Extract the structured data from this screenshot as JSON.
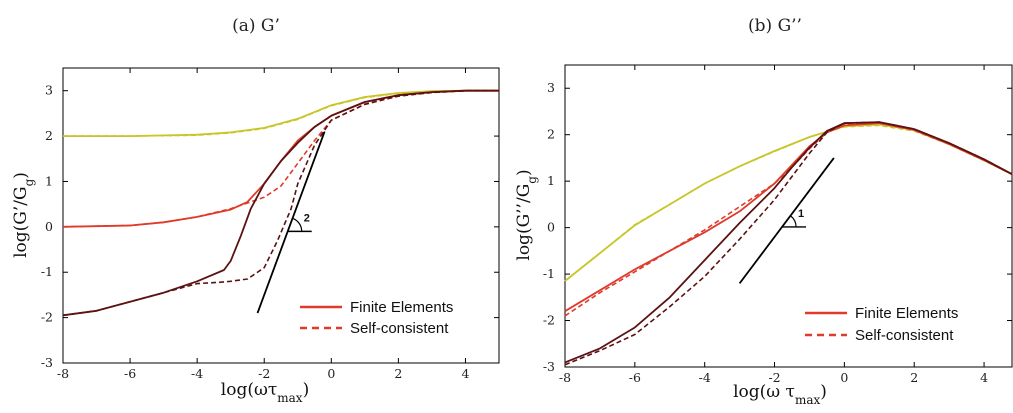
{
  "chart_data": [
    {
      "type": "line",
      "panel_title": "(a) G’",
      "ylabel": "log(G’/Gg)",
      "xlabel": "log(ωτmax)",
      "xlim": [
        -8,
        5
      ],
      "ylim": [
        -3,
        3.5
      ],
      "xticks": [
        -8,
        -6,
        -4,
        -2,
        0,
        2,
        4
      ],
      "yticks": [
        -3,
        -2,
        -1,
        0,
        1,
        2,
        3
      ],
      "legend": {
        "position": "bottom-right",
        "entries": [
          {
            "label": "Finite Elements",
            "style": "solid"
          },
          {
            "label": "Self-consistent",
            "style": "dashed"
          }
        ]
      },
      "slope_label": "2",
      "slope_line": {
        "x": [
          -2.2,
          -0.2
        ],
        "y": [
          -1.9,
          2.1
        ]
      },
      "colors": {
        "axis": "#000000",
        "yellow": "#c8c628",
        "red": "#e03a2a",
        "dark": "#5a1212",
        "slope": "#000000"
      },
      "series": [
        {
          "color": "yellow",
          "dash": false,
          "x": [
            -8,
            -6,
            -4,
            -3,
            -2,
            -1,
            0,
            1,
            2,
            3,
            4,
            5
          ],
          "y": [
            2.0,
            2.0,
            2.03,
            2.08,
            2.18,
            2.38,
            2.68,
            2.86,
            2.95,
            2.99,
            3.0,
            3.0
          ]
        },
        {
          "color": "yellow",
          "dash": true,
          "x": [
            -8,
            -6,
            -4,
            -3,
            -2,
            -1,
            0,
            1,
            2,
            3,
            4,
            5
          ],
          "y": [
            2.0,
            2.0,
            2.02,
            2.07,
            2.17,
            2.37,
            2.67,
            2.85,
            2.94,
            2.99,
            3.0,
            3.0
          ]
        },
        {
          "color": "red",
          "dash": false,
          "x": [
            -8,
            -6,
            -5,
            -4,
            -3,
            -2.5,
            -2,
            -1.5,
            -1,
            -0.5,
            0,
            1,
            2,
            3,
            4,
            5
          ],
          "y": [
            0.0,
            0.03,
            0.1,
            0.22,
            0.38,
            0.55,
            0.95,
            1.45,
            1.9,
            2.2,
            2.45,
            2.75,
            2.9,
            2.97,
            3.0,
            3.0
          ]
        },
        {
          "color": "red",
          "dash": true,
          "x": [
            -8,
            -6,
            -5,
            -4,
            -3,
            -2,
            -1.5,
            -1,
            -0.5,
            0,
            1,
            2,
            3,
            4,
            5
          ],
          "y": [
            0.0,
            0.03,
            0.1,
            0.22,
            0.4,
            0.65,
            0.9,
            1.4,
            1.9,
            2.35,
            2.7,
            2.88,
            2.96,
            3.0,
            3.0
          ]
        },
        {
          "color": "dark",
          "dash": false,
          "x": [
            -8,
            -7,
            -6,
            -5,
            -4,
            -3.2,
            -3,
            -2.7,
            -2.4,
            -2,
            -1.5,
            -1,
            -0.5,
            0,
            1,
            2,
            3,
            4,
            5
          ],
          "y": [
            -1.95,
            -1.85,
            -1.65,
            -1.45,
            -1.2,
            -0.95,
            -0.75,
            -0.2,
            0.4,
            0.95,
            1.45,
            1.85,
            2.2,
            2.45,
            2.75,
            2.9,
            2.97,
            3.0,
            3.0
          ]
        },
        {
          "color": "dark",
          "dash": true,
          "x": [
            -8,
            -7,
            -6,
            -5,
            -4,
            -3.3,
            -3,
            -2.5,
            -2,
            -1.6,
            -1.2,
            -1,
            -0.5,
            0,
            1,
            2,
            3,
            4,
            5
          ],
          "y": [
            -1.95,
            -1.85,
            -1.65,
            -1.45,
            -1.25,
            -1.22,
            -1.2,
            -1.15,
            -0.9,
            -0.3,
            0.4,
            0.95,
            1.8,
            2.35,
            2.7,
            2.88,
            2.96,
            3.0,
            3.0
          ]
        }
      ]
    },
    {
      "type": "line",
      "panel_title": "(b) G’’",
      "ylabel": "log(G’’/Gg)",
      "xlabel": "log(ω τmax)",
      "xlim": [
        -8,
        4.8
      ],
      "ylim": [
        -3,
        3.5
      ],
      "xticks": [
        -8,
        -6,
        -4,
        -2,
        0,
        2,
        4
      ],
      "yticks": [
        -3,
        -2,
        -1,
        0,
        1,
        2,
        3
      ],
      "legend": {
        "position": "bottom-right",
        "entries": [
          {
            "label": "Finite Elements",
            "style": "solid"
          },
          {
            "label": "Self-consistent",
            "style": "dashed"
          }
        ]
      },
      "slope_label": "1",
      "slope_line": {
        "x": [
          -3,
          -0.3
        ],
        "y": [
          -1.2,
          1.5
        ]
      },
      "colors": {
        "axis": "#000000",
        "yellow": "#c8c628",
        "red": "#e03a2a",
        "dark": "#5a1212",
        "slope": "#000000"
      },
      "series": [
        {
          "color": "yellow",
          "dash": false,
          "x": [
            -8,
            -7,
            -6,
            -5,
            -4,
            -3,
            -2,
            -1,
            0,
            1,
            2,
            3,
            4,
            4.8
          ],
          "y": [
            -1.15,
            -0.55,
            0.05,
            0.5,
            0.95,
            1.32,
            1.65,
            1.95,
            2.18,
            2.22,
            2.1,
            1.8,
            1.45,
            1.15
          ]
        },
        {
          "color": "yellow",
          "dash": true,
          "x": [
            -8,
            -7,
            -6,
            -5,
            -4,
            -3,
            -2,
            -1,
            0,
            1,
            2,
            3,
            4,
            4.8
          ],
          "y": [
            -1.15,
            -0.55,
            0.06,
            0.5,
            0.95,
            1.32,
            1.64,
            1.95,
            2.17,
            2.2,
            2.08,
            1.79,
            1.44,
            1.15
          ]
        },
        {
          "color": "red",
          "dash": false,
          "x": [
            -8,
            -7,
            -6,
            -5,
            -4,
            -3,
            -2,
            -1.5,
            -1,
            -0.5,
            0,
            1,
            2,
            3,
            4,
            4.8
          ],
          "y": [
            -1.8,
            -1.35,
            -0.9,
            -0.5,
            -0.1,
            0.35,
            0.95,
            1.35,
            1.75,
            2.05,
            2.2,
            2.25,
            2.1,
            1.8,
            1.45,
            1.15
          ]
        },
        {
          "color": "red",
          "dash": true,
          "x": [
            -8,
            -7,
            -6,
            -5,
            -4,
            -3,
            -2,
            -1.5,
            -1,
            -0.5,
            0,
            1,
            2,
            3,
            4,
            4.8
          ],
          "y": [
            -1.9,
            -1.4,
            -0.95,
            -0.5,
            -0.05,
            0.45,
            0.95,
            1.3,
            1.7,
            2.05,
            2.22,
            2.25,
            2.1,
            1.8,
            1.45,
            1.15
          ]
        },
        {
          "color": "dark",
          "dash": false,
          "x": [
            -8,
            -7,
            -6,
            -5,
            -4,
            -3,
            -2,
            -1.5,
            -1,
            -0.5,
            0,
            1,
            2,
            3,
            4,
            4.8
          ],
          "y": [
            -2.9,
            -2.6,
            -2.15,
            -1.5,
            -0.7,
            0.1,
            0.85,
            1.3,
            1.72,
            2.08,
            2.25,
            2.27,
            2.12,
            1.82,
            1.47,
            1.15
          ]
        },
        {
          "color": "dark",
          "dash": true,
          "x": [
            -8,
            -7,
            -6,
            -5,
            -4,
            -3,
            -2,
            -1.5,
            -1,
            -0.5,
            0,
            1,
            2,
            3,
            4,
            4.8
          ],
          "y": [
            -2.95,
            -2.65,
            -2.3,
            -1.7,
            -1.05,
            -0.25,
            0.6,
            1.1,
            1.6,
            2.05,
            2.25,
            2.27,
            2.12,
            1.82,
            1.47,
            1.15
          ]
        }
      ]
    }
  ]
}
